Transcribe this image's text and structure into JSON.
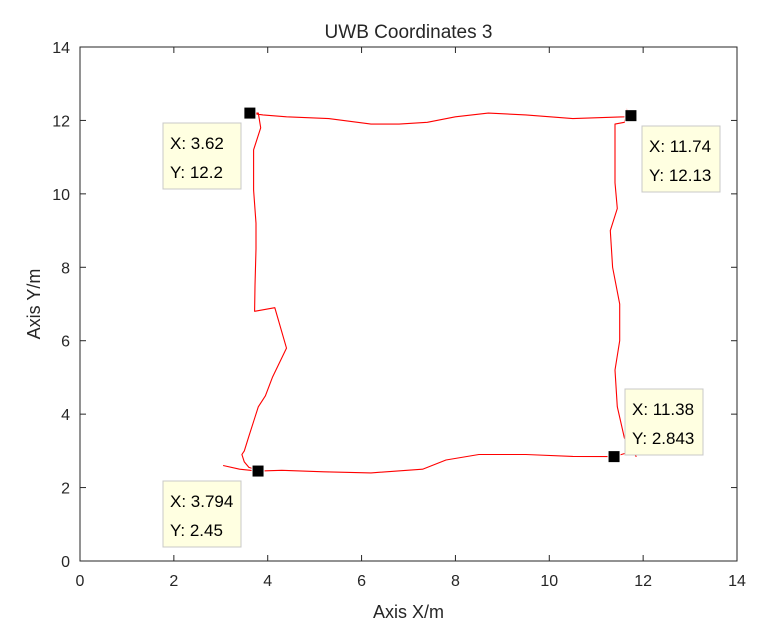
{
  "chart_data": {
    "type": "line",
    "title": "UWB Coordinates 3",
    "xlabel": "Axis X/m",
    "ylabel": "Axis Y/m",
    "xlim": [
      0,
      14
    ],
    "ylim": [
      0,
      14
    ],
    "xticks": [
      "0",
      "2",
      "4",
      "6",
      "8",
      "10",
      "12",
      "14"
    ],
    "yticks": [
      "0",
      "2",
      "4",
      "6",
      "8",
      "10",
      "12",
      "14"
    ],
    "grid": false,
    "legend": "none",
    "line_color": "#ff0000",
    "series": [
      {
        "x": [
          3.05,
          3.4,
          3.794,
          4.3,
          5.2,
          6.2,
          7.3,
          7.8,
          8.5,
          9.5,
          10.5,
          11.38,
          11.8,
          11.85,
          11.6,
          11.45,
          11.4,
          11.5,
          11.5,
          11.35,
          11.3,
          11.45,
          11.4,
          11.4,
          11.4,
          11.6,
          11.65,
          11.72,
          11.74,
          11.6,
          10.5,
          9.5,
          8.7,
          8.0,
          7.4,
          6.8,
          6.2,
          5.3,
          4.4,
          3.9,
          3.62,
          3.8,
          3.85,
          3.7,
          3.7,
          3.75,
          3.75,
          3.73,
          3.72,
          4.15,
          4.4,
          4.1,
          3.95,
          3.8,
          3.7,
          3.6,
          3.5,
          3.45,
          3.5,
          3.6,
          3.85
        ],
        "y": [
          2.6,
          2.5,
          2.45,
          2.47,
          2.43,
          2.4,
          2.5,
          2.75,
          2.9,
          2.9,
          2.85,
          2.843,
          3.0,
          2.85,
          3.35,
          4.2,
          5.2,
          6.0,
          7.0,
          8.0,
          9.0,
          9.6,
          10.3,
          11.2,
          11.9,
          11.95,
          12.3,
          12.25,
          12.13,
          12.1,
          12.05,
          12.15,
          12.2,
          12.1,
          11.95,
          11.9,
          11.9,
          12.05,
          12.1,
          12.15,
          12.2,
          12.2,
          11.8,
          11.2,
          10.1,
          9.2,
          8.5,
          7.5,
          6.8,
          6.9,
          5.8,
          5.0,
          4.5,
          4.2,
          3.8,
          3.4,
          3.0,
          2.9,
          2.7,
          2.55,
          2.45
        ]
      }
    ],
    "datatips": [
      {
        "x": 3.62,
        "y": 12.2,
        "x_text": "X: 3.62",
        "y_text": "Y: 12.2",
        "box": "below-left"
      },
      {
        "x": 11.74,
        "y": 12.13,
        "x_text": "X: 11.74",
        "y_text": "Y: 12.13",
        "box": "below-right"
      },
      {
        "x": 11.38,
        "y": 2.843,
        "x_text": "X: 11.38",
        "y_text": "Y: 2.843",
        "box": "above-right"
      },
      {
        "x": 3.794,
        "y": 2.45,
        "x_text": "X: 3.794",
        "y_text": "Y: 2.45",
        "box": "below-left"
      }
    ]
  }
}
